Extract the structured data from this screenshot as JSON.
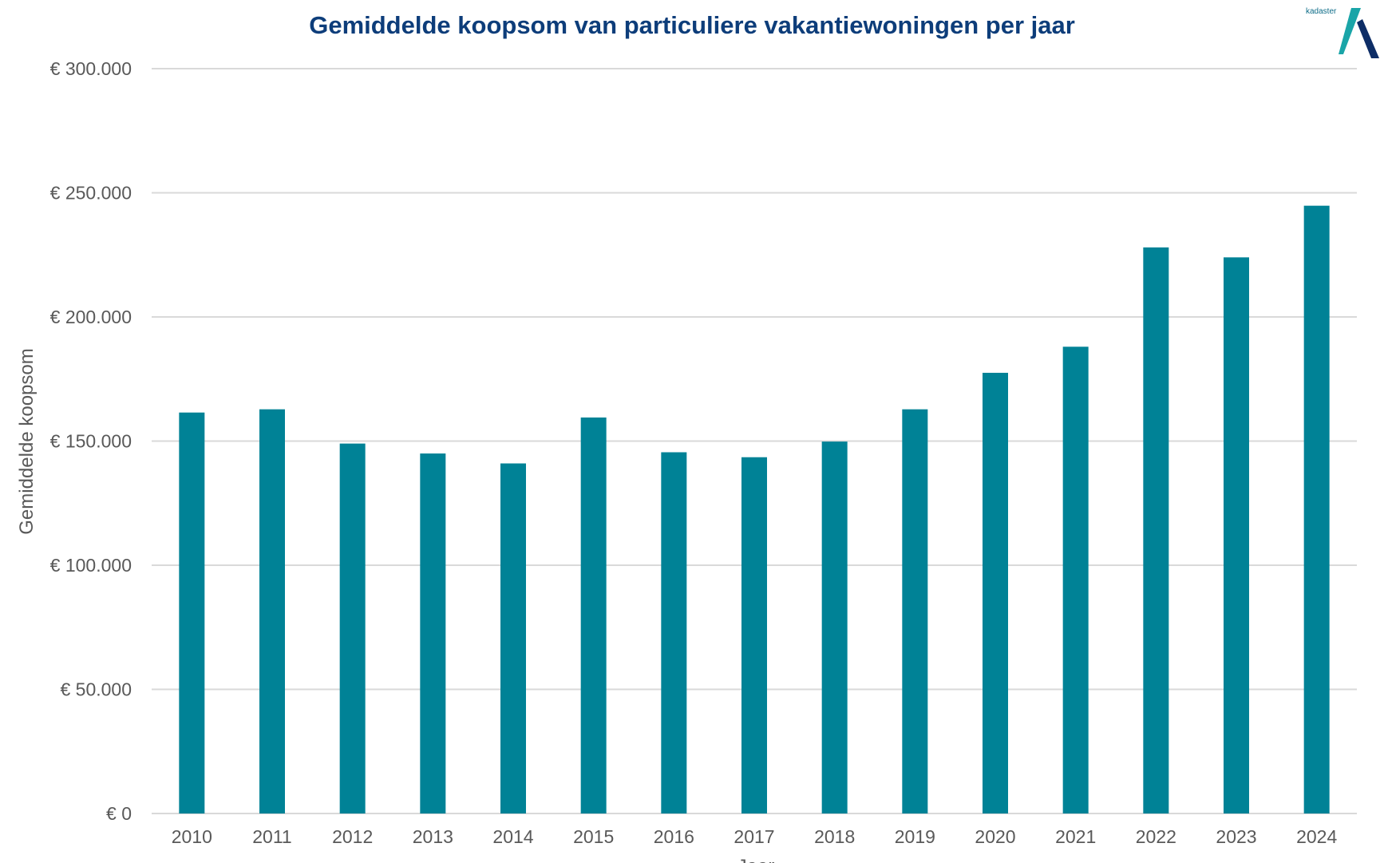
{
  "chart_data": {
    "type": "bar",
    "title": "Gemiddelde koopsom van particuliere vakantiewoningen per jaar",
    "xlabel": "Jaar",
    "ylabel": "Gemiddelde koopsom",
    "categories": [
      "2010",
      "2011",
      "2012",
      "2013",
      "2014",
      "2015",
      "2016",
      "2017",
      "2018",
      "2019",
      "2020",
      "2021",
      "2022",
      "2023",
      "2024"
    ],
    "values": [
      161500,
      162800,
      149000,
      145000,
      141000,
      159500,
      145500,
      143500,
      149800,
      162800,
      177500,
      188000,
      228000,
      224000,
      244800
    ],
    "ylim": [
      0,
      300000
    ],
    "yticks": [
      0,
      50000,
      100000,
      150000,
      200000,
      250000,
      300000
    ],
    "ytick_labels": [
      "€ 0",
      "€ 50.000",
      "€ 100.000",
      "€ 150.000",
      "€ 200.000",
      "€ 250.000",
      "€ 300.000"
    ],
    "grid": true,
    "legend": "none",
    "colors": {
      "bar": "#008296",
      "title": "#0d3d7a",
      "grid": "#d9d9d9",
      "axis_text": "#595959"
    }
  },
  "logo": {
    "text": "kadaster",
    "icon": "kadaster-logo-icon"
  }
}
